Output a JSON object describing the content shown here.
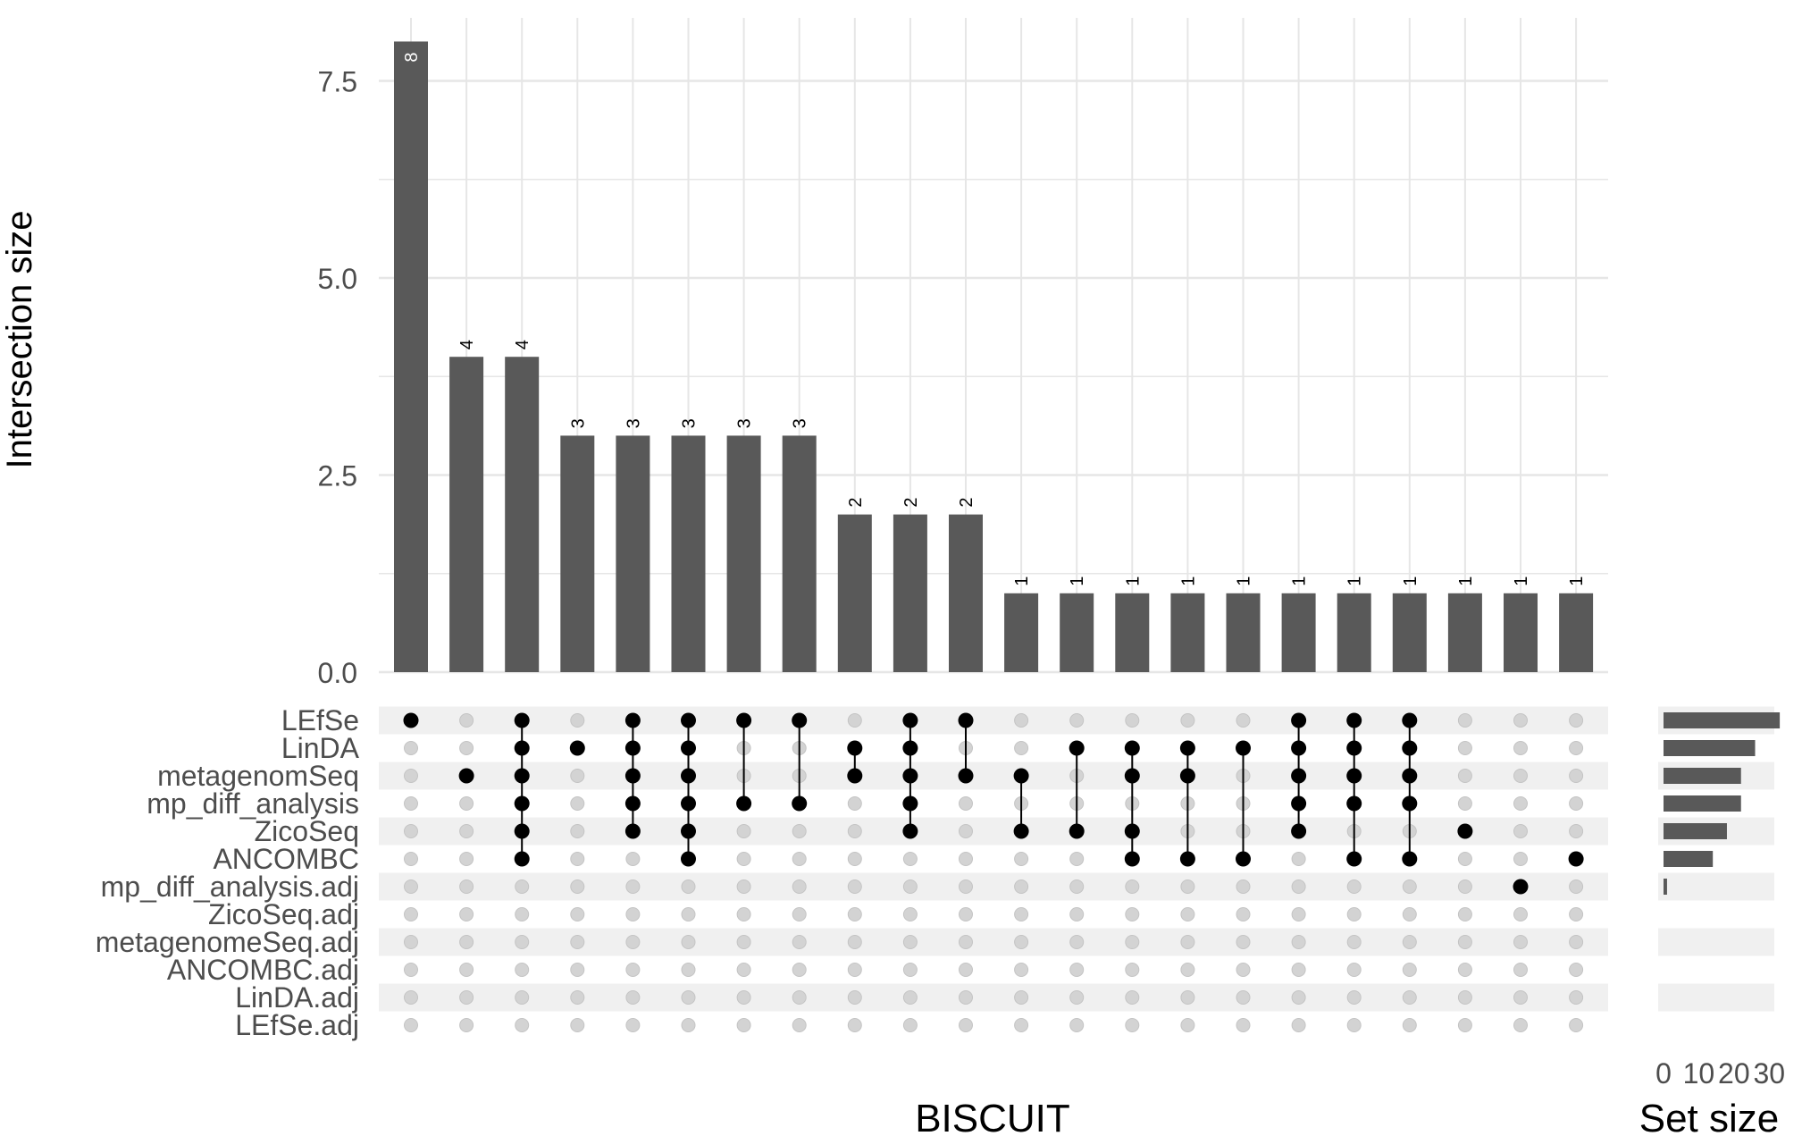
{
  "chart_data": {
    "type": "bar",
    "title": "",
    "xlabel": "BISCUIT",
    "ylabel": "Intersection size",
    "ylim": [
      0,
      8.3
    ],
    "yticks": [
      "0.0",
      "2.5",
      "5.0",
      "7.5"
    ],
    "grid": true,
    "intersections": [
      {
        "size": 8,
        "label": "8",
        "sets": [
          "LEfSe"
        ]
      },
      {
        "size": 4,
        "label": "4",
        "sets": [
          "metagenomSeq"
        ]
      },
      {
        "size": 4,
        "label": "4",
        "sets": [
          "LEfSe",
          "LinDA",
          "metagenomSeq",
          "mp_diff_analysis",
          "ZicoSeq",
          "ANCOMBC"
        ]
      },
      {
        "size": 3,
        "label": "3",
        "sets": [
          "LinDA"
        ]
      },
      {
        "size": 3,
        "label": "3",
        "sets": [
          "LEfSe",
          "LinDA",
          "metagenomSeq",
          "mp_diff_analysis",
          "ZicoSeq"
        ]
      },
      {
        "size": 3,
        "label": "3",
        "sets": [
          "LEfSe",
          "LinDA",
          "metagenomSeq",
          "mp_diff_analysis",
          "ZicoSeq",
          "ANCOMBC"
        ]
      },
      {
        "size": 3,
        "label": "3",
        "sets": [
          "LEfSe",
          "mp_diff_analysis"
        ]
      },
      {
        "size": 3,
        "label": "3",
        "sets": [
          "LEfSe",
          "mp_diff_analysis"
        ]
      },
      {
        "size": 2,
        "label": "2",
        "sets": [
          "LinDA",
          "metagenomSeq"
        ]
      },
      {
        "size": 2,
        "label": "2",
        "sets": [
          "LEfSe",
          "LinDA",
          "metagenomSeq",
          "mp_diff_analysis",
          "ZicoSeq"
        ]
      },
      {
        "size": 2,
        "label": "2",
        "sets": [
          "LEfSe",
          "metagenomSeq"
        ]
      },
      {
        "size": 1,
        "label": "1",
        "sets": [
          "metagenomSeq",
          "ZicoSeq"
        ]
      },
      {
        "size": 1,
        "label": "1",
        "sets": [
          "LinDA",
          "ZicoSeq"
        ]
      },
      {
        "size": 1,
        "label": "1",
        "sets": [
          "LinDA",
          "metagenomSeq",
          "ZicoSeq",
          "ANCOMBC"
        ]
      },
      {
        "size": 1,
        "label": "1",
        "sets": [
          "LinDA",
          "metagenomSeq",
          "ANCOMBC"
        ]
      },
      {
        "size": 1,
        "label": "1",
        "sets": [
          "LinDA",
          "ANCOMBC"
        ]
      },
      {
        "size": 1,
        "label": "1",
        "sets": [
          "LEfSe",
          "LinDA",
          "metagenomSeq",
          "mp_diff_analysis",
          "ZicoSeq"
        ]
      },
      {
        "size": 1,
        "label": "1",
        "sets": [
          "LEfSe",
          "LinDA",
          "metagenomSeq",
          "mp_diff_analysis",
          "ANCOMBC"
        ]
      },
      {
        "size": 1,
        "label": "1",
        "sets": [
          "LEfSe",
          "LinDA",
          "metagenomSeq",
          "mp_diff_analysis",
          "ANCOMBC"
        ]
      },
      {
        "size": 1,
        "label": "1",
        "sets": [
          "ZicoSeq"
        ]
      },
      {
        "size": 1,
        "label": "1",
        "sets": [
          "mp_diff_analysis.adj"
        ]
      },
      {
        "size": 1,
        "label": "1",
        "sets": [
          "ANCOMBC"
        ]
      }
    ],
    "sets": [
      {
        "name": "LEfSe",
        "size": 33
      },
      {
        "name": "LinDA",
        "size": 26
      },
      {
        "name": "metagenomSeq",
        "size": 22
      },
      {
        "name": "mp_diff_analysis",
        "size": 22
      },
      {
        "name": "ZicoSeq",
        "size": 18
      },
      {
        "name": "ANCOMBC",
        "size": 14
      },
      {
        "name": "mp_diff_analysis.adj",
        "size": 1
      },
      {
        "name": "ZicoSeq.adj",
        "size": 0
      },
      {
        "name": "metagenomeSeq.adj",
        "size": 0
      },
      {
        "name": "ANCOMBC.adj",
        "size": 0
      },
      {
        "name": "LinDA.adj",
        "size": 0
      },
      {
        "name": "LEfSe.adj",
        "size": 0
      }
    ],
    "set_size_axis": {
      "label": "Set size",
      "xlim": [
        0,
        35
      ],
      "ticks": [
        "0",
        "10",
        "20",
        "30"
      ]
    },
    "colors": {
      "bar": "#595959",
      "dot_active": "#000000",
      "dot_inactive": "#d3d3d3",
      "stripe": "#f0f0f0",
      "grid": "#e6e6e6"
    }
  }
}
